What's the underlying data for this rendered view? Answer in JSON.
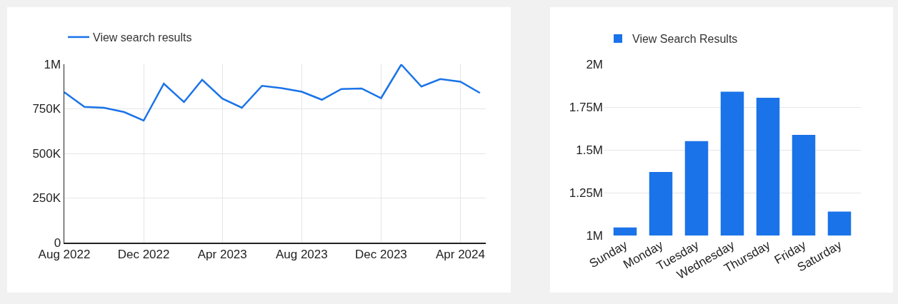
{
  "chart_data": [
    {
      "type": "line",
      "x": [
        "2022-08",
        "2022-09",
        "2022-10",
        "2022-11",
        "2022-12",
        "2023-01",
        "2023-02",
        "2023-03",
        "2023-04",
        "2023-05",
        "2023-06",
        "2023-07",
        "2023-08",
        "2023-09",
        "2023-10",
        "2023-11",
        "2023-12",
        "2024-01",
        "2024-02",
        "2024-03",
        "2024-04",
        "2024-05"
      ],
      "series": [
        {
          "name": "View search results",
          "color": "#1a73e8",
          "values": [
            843000,
            761000,
            756000,
            732000,
            684000,
            891000,
            788000,
            913000,
            807000,
            756000,
            879000,
            866000,
            846000,
            801000,
            861000,
            864000,
            810000,
            998000,
            875000,
            917000,
            902000,
            839000
          ]
        }
      ],
      "xlim": [
        "2022-08-01",
        "2024-05-10"
      ],
      "xticks": [
        {
          "value": "2022-08-01",
          "label": "Aug 2022"
        },
        {
          "value": "2022-12-01",
          "label": "Dec 2022"
        },
        {
          "value": "2023-04-01",
          "label": "Apr 2023"
        },
        {
          "value": "2023-08-01",
          "label": "Aug 2023"
        },
        {
          "value": "2023-12-01",
          "label": "Dec 2023"
        },
        {
          "value": "2024-04-01",
          "label": "Apr 2024"
        }
      ],
      "ylim": [
        0,
        1000000
      ],
      "yticks": [
        0,
        {
          "value": 250000,
          "label": "250K"
        },
        {
          "value": 500000,
          "label": "500K"
        },
        {
          "value": 750000,
          "label": "750K"
        },
        {
          "value": 1000000,
          "label": "1M"
        }
      ],
      "grid": true,
      "legend": "top left",
      "marker": "none",
      "line_style": "solid"
    },
    {
      "type": "bar",
      "categories": [
        "Sunday",
        "Monday",
        "Tuesday",
        "Wednesday",
        "Thursday",
        "Friday",
        "Saturday"
      ],
      "series": [
        {
          "name": "View Search Results",
          "color": "#1a73e8",
          "values": [
            1047000,
            1371000,
            1551000,
            1840000,
            1804000,
            1587000,
            1140000
          ]
        }
      ],
      "ylim": [
        1000000,
        2000000
      ],
      "yticks": [
        {
          "value": 1000000,
          "label": "1M"
        },
        {
          "value": 1250000,
          "label": "1.25M"
        },
        {
          "value": 1500000,
          "label": "1.5M"
        },
        {
          "value": 1750000,
          "label": "1.75M"
        },
        {
          "value": 2000000,
          "label": "2M"
        }
      ],
      "grid": "y",
      "legend": "top left"
    }
  ]
}
